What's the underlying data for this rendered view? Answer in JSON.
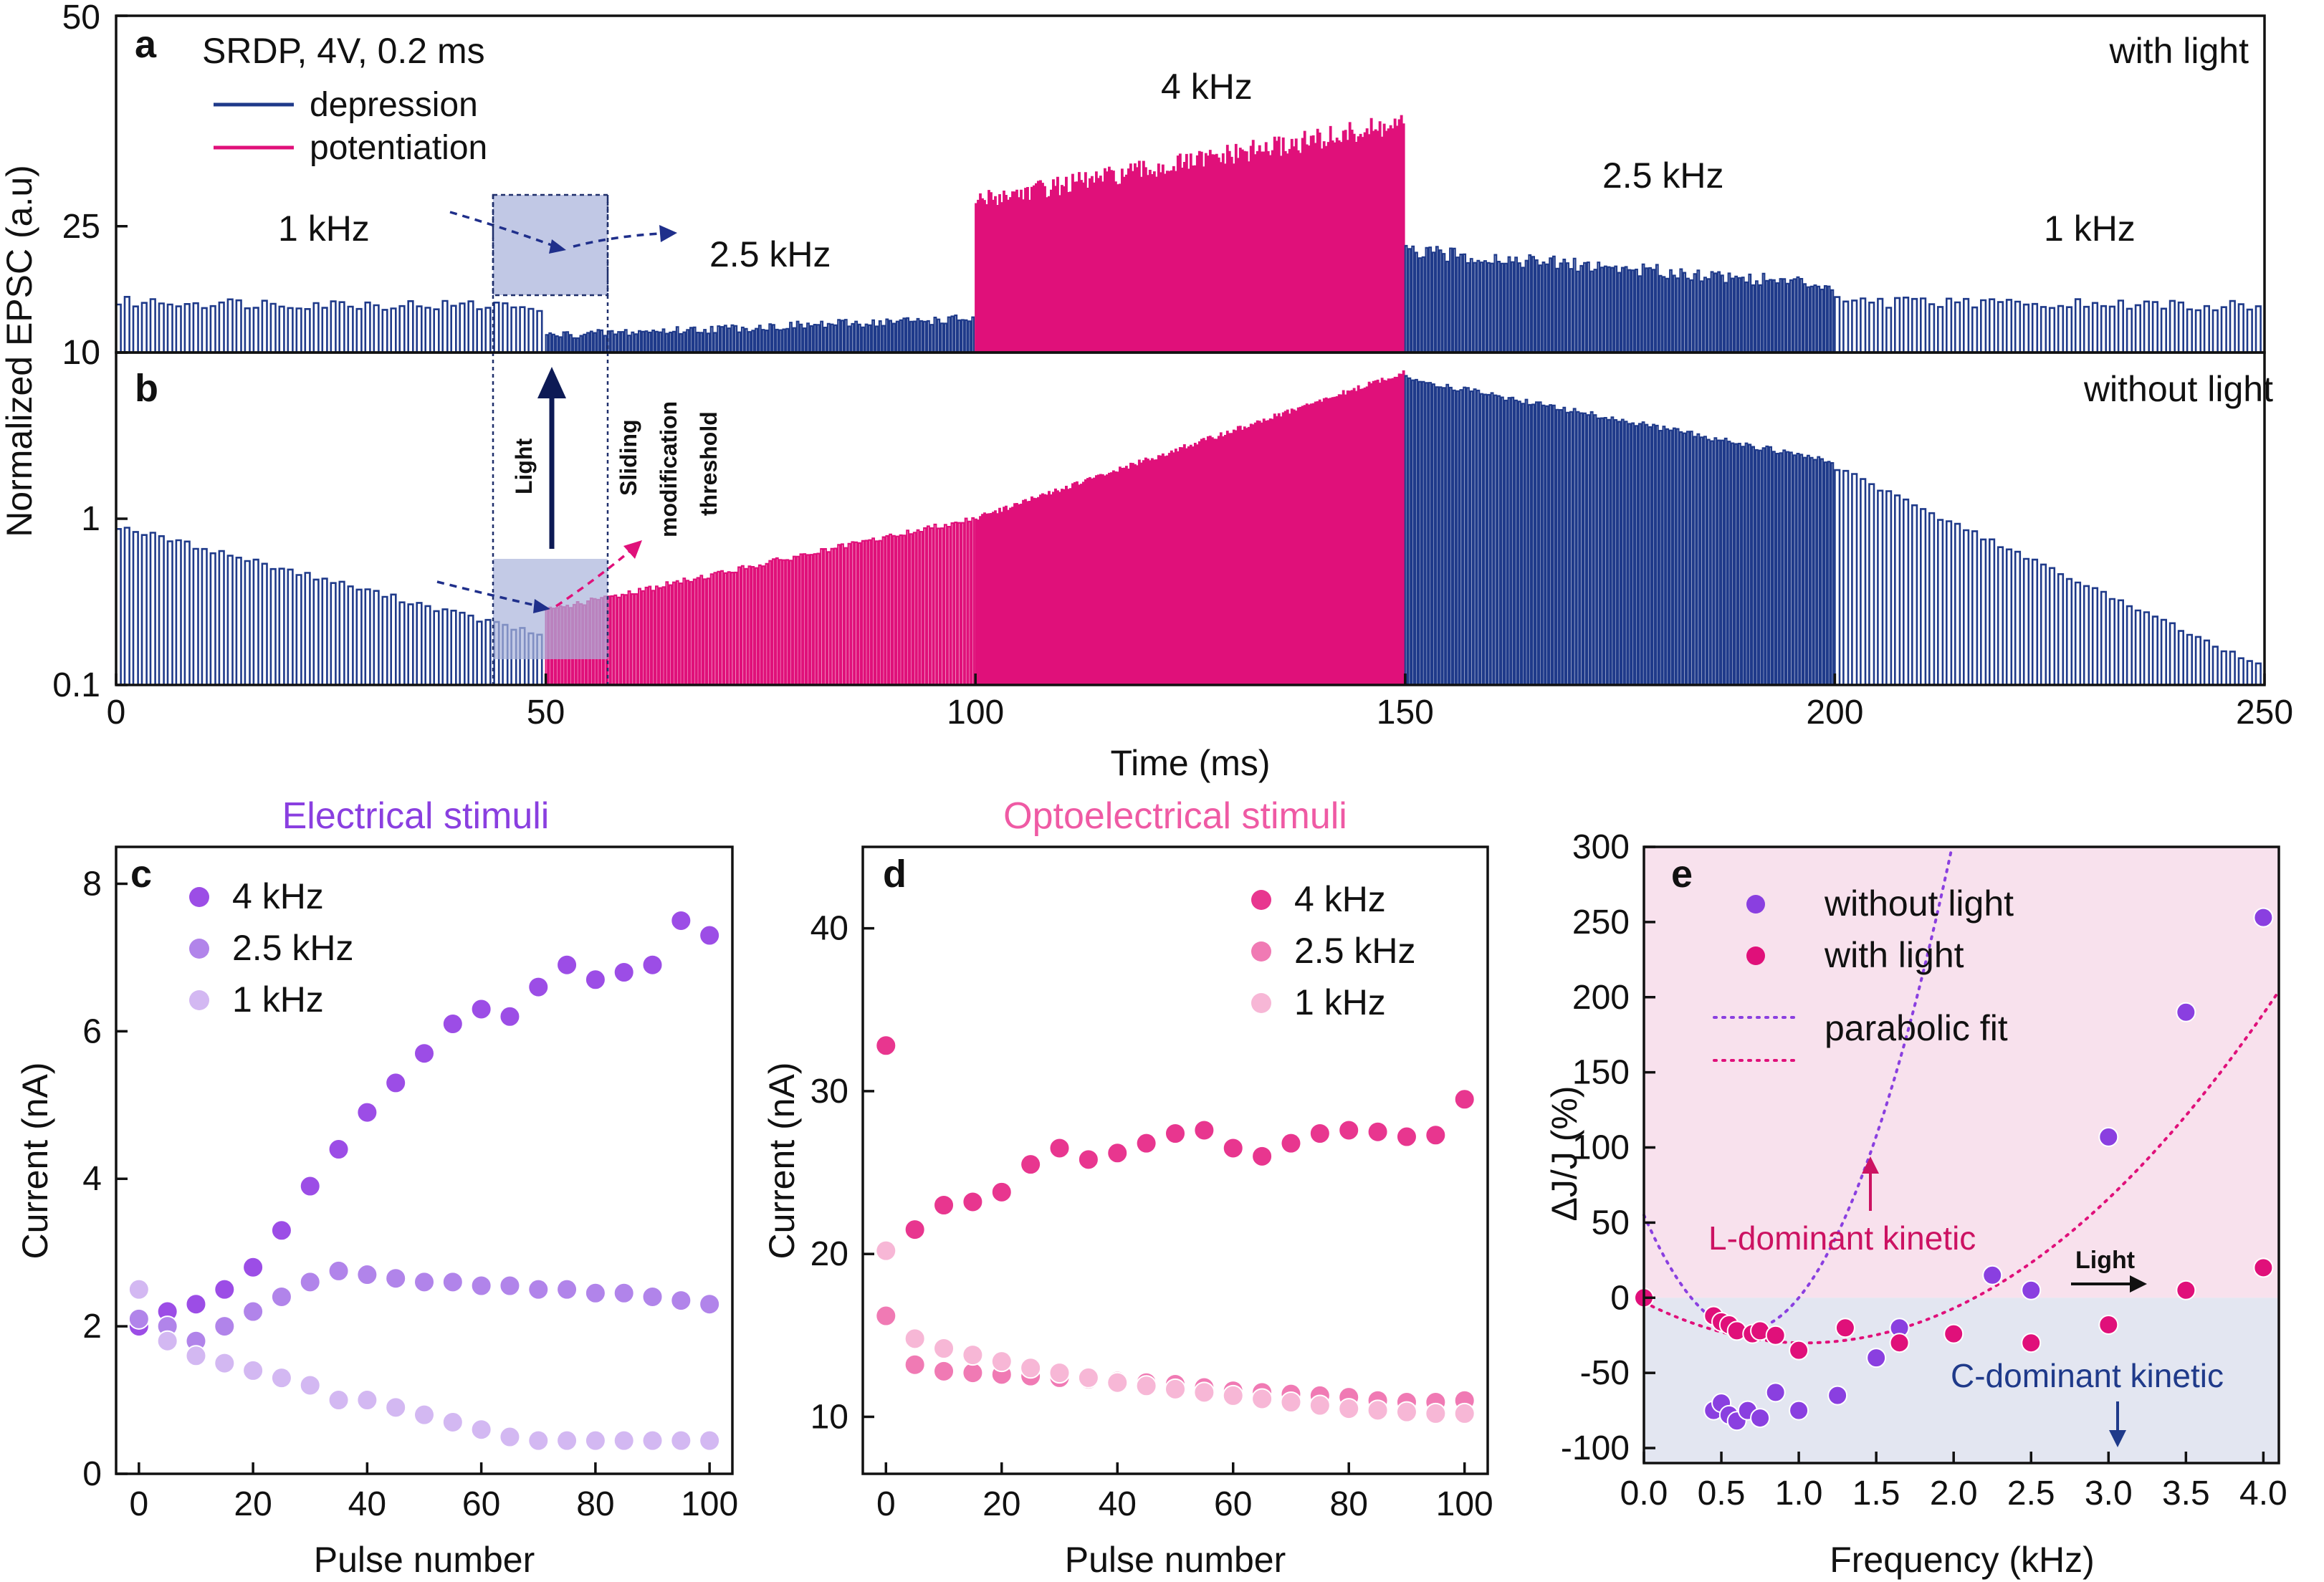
{
  "chart_data": [
    {
      "panel": "a",
      "type": "bar",
      "title": "SRDP, 4V, 0.2 ms",
      "corner_label": "with light",
      "xlabel": "Time (ms)",
      "ylabel": "Normalized EPSC (a.u)",
      "xlim": [
        0,
        250
      ],
      "ylim": [
        10,
        50
      ],
      "yticks": [
        "10",
        "25",
        "50"
      ],
      "legend": [
        {
          "name": "depression",
          "color": "#1f3a8a"
        },
        {
          "name": "potentiation",
          "color": "#e0107a"
        }
      ],
      "annotations": [
        "1 kHz",
        "2.5 kHz",
        "4 kHz",
        "2.5 kHz",
        "1 kHz"
      ],
      "segments": [
        {
          "name": "1 kHz",
          "t": [
            0,
            50
          ],
          "period": 1.0,
          "start": 16,
          "end": 15.5,
          "kind": "depression"
        },
        {
          "name": "2.5 kHz",
          "t": [
            50,
            100
          ],
          "period": 0.4,
          "start": 12,
          "end": 14,
          "kind": "depression"
        },
        {
          "name": "4 kHz",
          "t": [
            100,
            150
          ],
          "period": 0.25,
          "start": 28,
          "end": 37,
          "kind": "potentiation"
        },
        {
          "name": "2.5 kHz",
          "t": [
            150,
            200
          ],
          "period": 0.4,
          "start": 22,
          "end": 18,
          "kind": "depression"
        },
        {
          "name": "1 kHz",
          "t": [
            200,
            250
          ],
          "period": 1.0,
          "start": 16,
          "end": 15.5,
          "kind": "depression"
        }
      ]
    },
    {
      "panel": "b",
      "type": "bar",
      "corner_label": "without light",
      "xlabel": "Time (ms)",
      "xlim": [
        0,
        250
      ],
      "ylim": [
        0.1,
        10
      ],
      "yscale": "log",
      "xticks": [
        "0",
        "50",
        "100",
        "150",
        "200",
        "250"
      ],
      "yticks": [
        "0.1",
        "1",
        "10"
      ],
      "annotations": [
        "Light",
        "Sliding",
        "modification",
        "threshold"
      ],
      "segments": [
        {
          "name": "1 kHz",
          "t": [
            0,
            50
          ],
          "period": 1.0,
          "start": 0.9,
          "end": 0.2,
          "kind": "depression"
        },
        {
          "name": "2.5 kHz",
          "t": [
            50,
            100
          ],
          "period": 0.4,
          "start": 0.28,
          "end": 1.0,
          "kind": "potentiation"
        },
        {
          "name": "4 kHz",
          "t": [
            100,
            150
          ],
          "period": 0.25,
          "start": 1.0,
          "end": 7.5,
          "kind": "potentiation"
        },
        {
          "name": "2.5 kHz",
          "t": [
            150,
            200
          ],
          "period": 0.4,
          "start": 7.0,
          "end": 2.2,
          "kind": "depression"
        },
        {
          "name": "1 kHz",
          "t": [
            200,
            250
          ],
          "period": 1.0,
          "start": 2.0,
          "end": 0.13,
          "kind": "depression"
        }
      ]
    },
    {
      "panel": "c",
      "type": "scatter",
      "title": "Electrical stimuli",
      "xlabel": "Pulse number",
      "ylabel": "Current (nA)",
      "xlim": [
        -4,
        104
      ],
      "ylim": [
        0,
        8.5
      ],
      "xticks": [
        "0",
        "20",
        "40",
        "60",
        "80",
        "100"
      ],
      "yticks": [
        "0",
        "2",
        "4",
        "6",
        "8"
      ],
      "series": [
        {
          "name": "4 kHz",
          "color": "#9c4de6",
          "x": [
            0,
            5,
            10,
            15,
            20,
            25,
            30,
            35,
            40,
            45,
            50,
            55,
            60,
            65,
            70,
            75,
            80,
            85,
            90,
            95,
            100
          ],
          "y": [
            2.0,
            2.2,
            2.3,
            2.5,
            2.8,
            3.3,
            3.9,
            4.4,
            4.9,
            5.3,
            5.7,
            6.1,
            6.3,
            6.2,
            6.6,
            6.9,
            6.7,
            6.8,
            6.9,
            7.5,
            7.3
          ]
        },
        {
          "name": "2.5 kHz",
          "color": "#b184ea",
          "x": [
            0,
            5,
            10,
            15,
            20,
            25,
            30,
            35,
            40,
            45,
            50,
            55,
            60,
            65,
            70,
            75,
            80,
            85,
            90,
            95,
            100
          ],
          "y": [
            2.1,
            2.0,
            1.8,
            2.0,
            2.2,
            2.4,
            2.6,
            2.75,
            2.7,
            2.65,
            2.6,
            2.6,
            2.55,
            2.55,
            2.5,
            2.5,
            2.45,
            2.45,
            2.4,
            2.35,
            2.3
          ]
        },
        {
          "name": "1 kHz",
          "color": "#d3b8f2",
          "x": [
            0,
            5,
            10,
            15,
            20,
            25,
            30,
            35,
            40,
            45,
            50,
            55,
            60,
            65,
            70,
            75,
            80,
            85,
            90,
            95,
            100
          ],
          "y": [
            2.5,
            1.8,
            1.6,
            1.5,
            1.4,
            1.3,
            1.2,
            1.0,
            1.0,
            0.9,
            0.8,
            0.7,
            0.6,
            0.5,
            0.45,
            0.45,
            0.45,
            0.45,
            0.45,
            0.45,
            0.45
          ]
        }
      ]
    },
    {
      "panel": "d",
      "type": "scatter",
      "title": "Optoelectrical stimuli",
      "xlabel": "Pulse number",
      "ylabel": "Current (nA)",
      "xlim": [
        -4,
        104
      ],
      "ylim": [
        6.5,
        45
      ],
      "xticks": [
        "0",
        "20",
        "40",
        "60",
        "80",
        "100"
      ],
      "yticks": [
        "10",
        "20",
        "30",
        "40"
      ],
      "series": [
        {
          "name": "4 kHz",
          "color": "#e8368f",
          "x": [
            0,
            5,
            10,
            15,
            20,
            25,
            30,
            35,
            40,
            45,
            50,
            55,
            60,
            65,
            70,
            75,
            80,
            85,
            90,
            95,
            100
          ],
          "y": [
            32.8,
            21.5,
            23.0,
            23.2,
            23.8,
            25.5,
            26.5,
            25.8,
            26.2,
            26.8,
            27.4,
            27.6,
            26.5,
            26.0,
            26.8,
            27.4,
            27.6,
            27.5,
            27.2,
            27.3,
            29.5
          ]
        },
        {
          "name": "2.5 kHz",
          "color": "#f07ab4",
          "x": [
            0,
            5,
            10,
            15,
            20,
            25,
            30,
            35,
            40,
            45,
            50,
            55,
            60,
            65,
            70,
            75,
            80,
            85,
            90,
            95,
            100
          ],
          "y": [
            16.2,
            13.2,
            12.8,
            12.7,
            12.6,
            12.5,
            12.4,
            12.3,
            12.2,
            12.1,
            12.0,
            11.8,
            11.6,
            11.5,
            11.4,
            11.3,
            11.2,
            11.0,
            10.9,
            10.9,
            11.0
          ]
        },
        {
          "name": "1 kHz",
          "color": "#f7b7d6",
          "x": [
            0,
            5,
            10,
            15,
            20,
            25,
            30,
            35,
            40,
            45,
            50,
            55,
            60,
            65,
            70,
            75,
            80,
            85,
            90,
            95,
            100
          ],
          "y": [
            20.2,
            14.8,
            14.2,
            13.8,
            13.4,
            13.0,
            12.7,
            12.4,
            12.1,
            11.9,
            11.7,
            11.5,
            11.3,
            11.1,
            10.9,
            10.7,
            10.5,
            10.4,
            10.3,
            10.2,
            10.2
          ]
        }
      ]
    },
    {
      "panel": "e",
      "type": "scatter",
      "xlabel": "Frequency (kHz)",
      "ylabel": "ΔJ/J (%)",
      "xlim": [
        0,
        4.1
      ],
      "ylim": [
        -110,
        300
      ],
      "xticks": [
        "0.0",
        "0.5",
        "1.0",
        "1.5",
        "2.0",
        "2.5",
        "3.0",
        "3.5",
        "4.0"
      ],
      "yticks": [
        "-100",
        "-50",
        "0",
        "50",
        "100",
        "150",
        "200",
        "250",
        "300"
      ],
      "regions": [
        "L-dominant kinetic",
        "C-dominant kinetic"
      ],
      "annotations": [
        "Light"
      ],
      "series": [
        {
          "name": "without light",
          "color": "#8a3fe0",
          "x": [
            0.45,
            0.5,
            0.55,
            0.6,
            0.67,
            0.75,
            0.85,
            1.0,
            1.25,
            1.5,
            1.65,
            2.25,
            2.5,
            3.0,
            3.5,
            4.0
          ],
          "y": [
            -75,
            -70,
            -78,
            -82,
            -75,
            -80,
            -63,
            -75,
            -65,
            -40,
            -20,
            15,
            5,
            107,
            190,
            253
          ]
        },
        {
          "name": "with light",
          "color": "#e0107a",
          "x": [
            0.0,
            0.45,
            0.5,
            0.55,
            0.6,
            0.7,
            0.75,
            0.85,
            1.0,
            1.3,
            1.65,
            2.0,
            2.5,
            3.0,
            3.5,
            4.0
          ],
          "y": [
            0,
            -12,
            -16,
            -18,
            -22,
            -24,
            -22,
            -25,
            -35,
            -20,
            -30,
            -24,
            -30,
            -18,
            5,
            20
          ]
        },
        {
          "name": "parabolic fit",
          "color": "#8a3fe0",
          "fit_of": "without light",
          "coef": [
            55.0,
            -235.0,
            180.0
          ]
        },
        {
          "name": "parabolic fit",
          "color": "#e0107a",
          "fit_of": "with light",
          "coef": [
            -3.0,
            -52.0,
            25.0
          ]
        }
      ]
    }
  ]
}
